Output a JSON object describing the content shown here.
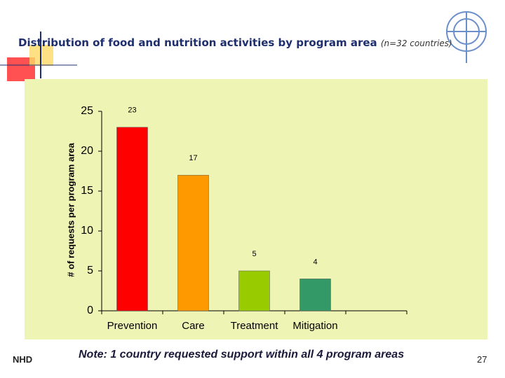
{
  "header": {
    "title": "Distribution of food and nutrition activities by program area",
    "subtitle": "(n=32 countries)"
  },
  "chart_data": {
    "type": "bar",
    "y_label": "# of requests per program area",
    "categories": [
      "Prevention",
      "Care",
      "Treatment",
      "Mitigation"
    ],
    "series": [
      {
        "name": null,
        "colors": [
          "#ff0000",
          "#ff9900",
          "#99cc00",
          "#339966"
        ],
        "values": [
          23,
          17,
          5,
          4
        ]
      }
    ],
    "ylim": [
      0,
      25
    ],
    "yticks": [
      0,
      5,
      10,
      15,
      20,
      25
    ]
  },
  "footer": {
    "note": "Note: 1 country requested support within all 4 program areas",
    "left": "NHD",
    "page": "27"
  }
}
